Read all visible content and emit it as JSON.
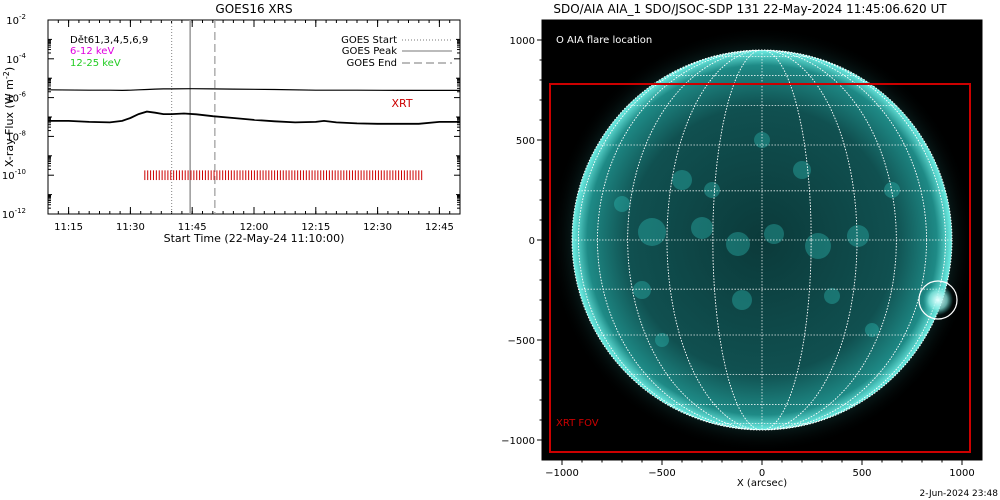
{
  "chart_data": [
    {
      "type": "line",
      "title": "GOES16 XRS",
      "xlabel": "Start Time (22-May-24 11:10:00)",
      "ylabel": "X-ray Flux (W m",
      "ylabel_sup": "-2",
      "ylabel_close": ")",
      "log_y": true,
      "xlim_minutes": [
        0,
        100
      ],
      "ylim_exponent": [
        -12,
        -2
      ],
      "x_ticks": [
        {
          "minute": 5,
          "label": "11:15"
        },
        {
          "minute": 20,
          "label": "11:30"
        },
        {
          "minute": 35,
          "label": "11:45"
        },
        {
          "minute": 50,
          "label": "12:00"
        },
        {
          "minute": 65,
          "label": "12:15"
        },
        {
          "minute": 80,
          "label": "12:30"
        },
        {
          "minute": 95,
          "label": "12:45"
        }
      ],
      "y_ticks": [
        {
          "exp": -2,
          "base": "10",
          "sup": "-2"
        },
        {
          "exp": -4,
          "base": "10",
          "sup": "-4"
        },
        {
          "exp": -6,
          "base": "10",
          "sup": "-6"
        },
        {
          "exp": -8,
          "base": "10",
          "sup": "-8"
        },
        {
          "exp": -10,
          "base": "10",
          "sup": "-10"
        },
        {
          "exp": -12,
          "base": "10",
          "sup": "-12"
        }
      ],
      "series": [
        {
          "name": "",
          "color": "#000000",
          "x": [
            0,
            10,
            15,
            18,
            20,
            22,
            24,
            26,
            28,
            30,
            35,
            40,
            45,
            55,
            65,
            75,
            85,
            95,
            100
          ],
          "log10_y": [
            -5.6,
            -5.62,
            -5.62,
            -5.63,
            -5.62,
            -5.6,
            -5.58,
            -5.56,
            -5.55,
            -5.55,
            -5.54,
            -5.55,
            -5.56,
            -5.58,
            -5.62,
            -5.62,
            -5.63,
            -5.63,
            -5.63
          ]
        },
        {
          "name": "",
          "color": "#000000",
          "x": [
            0,
            5,
            10,
            15,
            18,
            20,
            22,
            24,
            26,
            28,
            30,
            33,
            36,
            40,
            45,
            50,
            55,
            60,
            65,
            67,
            70,
            75,
            80,
            85,
            90,
            95,
            100
          ],
          "log10_y": [
            -7.2,
            -7.2,
            -7.25,
            -7.28,
            -7.2,
            -7.05,
            -6.85,
            -6.72,
            -6.78,
            -6.85,
            -6.85,
            -6.82,
            -6.86,
            -6.96,
            -7.05,
            -7.15,
            -7.22,
            -7.28,
            -7.25,
            -7.2,
            -7.28,
            -7.33,
            -7.35,
            -7.35,
            -7.35,
            -7.25,
            -7.25
          ]
        }
      ],
      "legend_top_left": [
        {
          "text": "Dět61,3,4,5,6,9",
          "color": "#000000"
        },
        {
          "text": "6-12 keV",
          "color": "#e000e0"
        },
        {
          "text": "12-25 keV",
          "color": "#22cc22"
        }
      ],
      "legend_top_right": [
        {
          "text": "GOES Start",
          "style": "dotted"
        },
        {
          "text": "GOES Peak",
          "style": "solid"
        },
        {
          "text": "GOES End",
          "style": "dashed"
        }
      ],
      "vlines": [
        {
          "name": "goes-start-line",
          "minute": 30,
          "style": "dotted"
        },
        {
          "name": "goes-peak-line",
          "minute": 34.5,
          "style": "solid"
        },
        {
          "name": "goes-end-line",
          "minute": 40.5,
          "style": "dashed"
        }
      ],
      "xrt_label": "XRT",
      "xrt_color": "#cc0000",
      "xrt_exposure_minutes": [
        23.5,
        24.2,
        24.9,
        25.6,
        26.3,
        27.0,
        27.7,
        28.4,
        29.1,
        29.8,
        30.5,
        31.2,
        31.9,
        32.6,
        33.3,
        34.0,
        34.7,
        35.4,
        36.1,
        36.8,
        37.5,
        38.2,
        38.9,
        39.6,
        40.3,
        41.0,
        41.7,
        42.4,
        43.1,
        43.8,
        44.5,
        45.2,
        45.9,
        46.6,
        47.3,
        48.0,
        48.7,
        49.4,
        50.1,
        50.8,
        51.5,
        52.2,
        52.9,
        53.6,
        54.3,
        55.0,
        55.7,
        56.4,
        57.1,
        57.8,
        58.5,
        59.2,
        59.9,
        60.6,
        61.3,
        62.0,
        62.7,
        63.4,
        64.1,
        64.8,
        65.5,
        66.2,
        66.9,
        67.6,
        68.3,
        69.0,
        69.7,
        70.4,
        71.1,
        71.8,
        72.5,
        73.2,
        73.9,
        74.6,
        75.3,
        76.0,
        76.7,
        77.4,
        78.1,
        78.8,
        79.5,
        80.2,
        80.9,
        81.6,
        82.3,
        83.0,
        83.7,
        84.4,
        85.1,
        85.8,
        86.5,
        87.2,
        87.9,
        88.6,
        89.3,
        90.0,
        90.7
      ]
    },
    {
      "type": "image",
      "title": "SDO/AIA AIA_1 SDO/JSOC-SDP 131 22-May-2024 11:45:06.620 UT",
      "xlabel": "X (arcsec)",
      "xlim": [
        -1100,
        1100
      ],
      "ylim": [
        -1100,
        1100
      ],
      "x_ticks": [
        -1000,
        -500,
        0,
        500,
        1000
      ],
      "y_ticks": [
        -1000,
        -500,
        0,
        500,
        1000
      ],
      "x_tick_labels": [
        "−1000",
        "−500",
        "0",
        "500",
        "1000"
      ],
      "y_tick_labels": [
        "−1000",
        "−500",
        "0",
        "500",
        "1000"
      ],
      "solar_radius_arcsec": 950,
      "legend_label": "O AIA flare location",
      "flare_location": {
        "x": 880,
        "y": -300,
        "radius": 95
      },
      "xrt_fov": {
        "label": "XRT FOV",
        "x0": -1060,
        "x1": 1040,
        "y0": -1060,
        "y1": 780,
        "color": "#cc0000"
      },
      "disk_color": "#30c8c0",
      "footer_text": "2-Jun-2024 23:48"
    }
  ]
}
